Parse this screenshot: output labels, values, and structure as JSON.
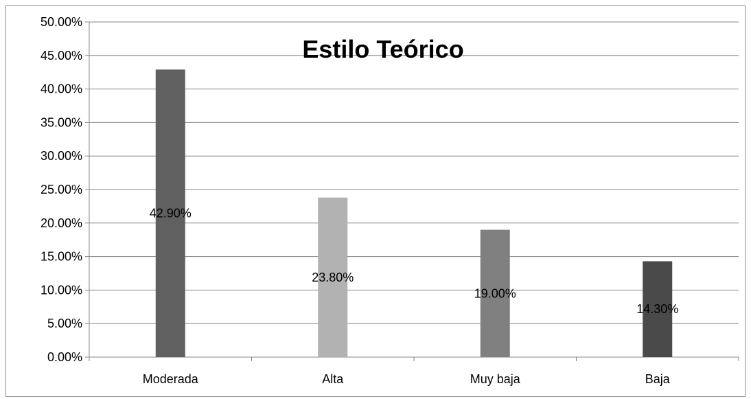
{
  "chart_data": {
    "type": "bar",
    "title": "Estilo Teórico",
    "categories": [
      "Moderada",
      "Alta",
      "Muy baja",
      "Baja"
    ],
    "values": [
      42.9,
      23.8,
      19.0,
      14.3
    ],
    "data_labels": [
      "42.90%",
      "23.80%",
      "19.00%",
      "14.30%"
    ],
    "bar_colors": [
      "#606060",
      "#b2b2b2",
      "#808080",
      "#4a4a4a"
    ],
    "ylim": [
      0,
      50
    ],
    "yticks": [
      "0.00%",
      "5.00%",
      "10.00%",
      "15.00%",
      "20.00%",
      "25.00%",
      "30.00%",
      "35.00%",
      "40.00%",
      "45.00%",
      "50.00%"
    ],
    "xlabel": "",
    "ylabel": "",
    "grid": true,
    "legend": "none"
  }
}
